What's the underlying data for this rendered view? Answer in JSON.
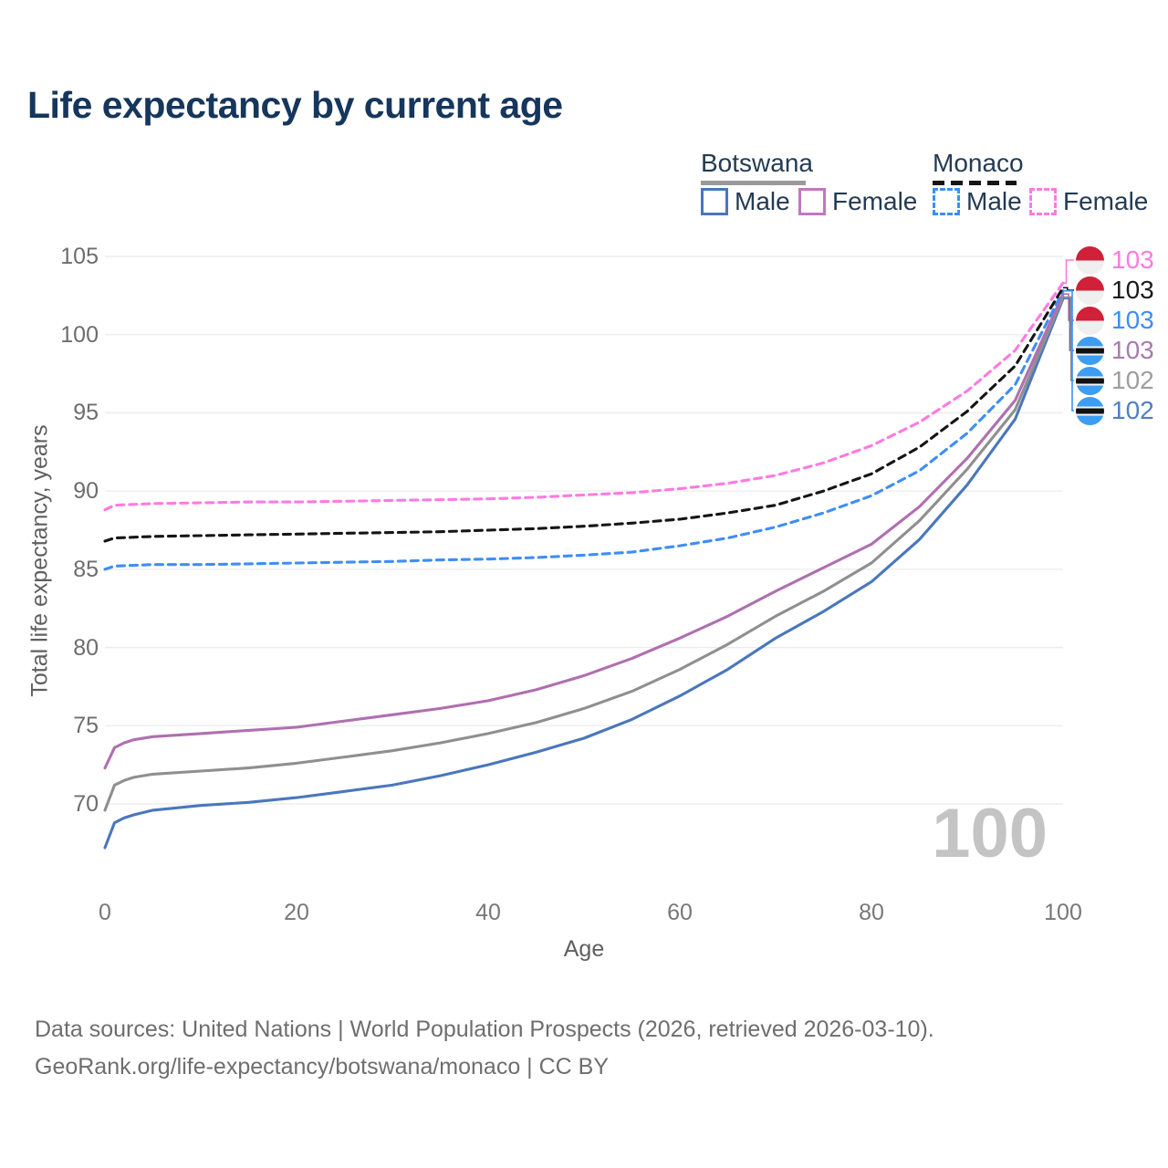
{
  "title": "Life expectancy by current age",
  "legend": {
    "groups": [
      {
        "name": "Botswana",
        "line_style": "solid",
        "underline_color": "#9a9a9a",
        "items": [
          {
            "label": "Male",
            "color": "#4a77bc"
          },
          {
            "label": "Female",
            "color": "#c078c0"
          }
        ]
      },
      {
        "name": "Monaco",
        "line_style": "dashed",
        "underline_color": "#151515",
        "items": [
          {
            "label": "Male",
            "color": "#3e8ef6"
          },
          {
            "label": "Female",
            "color": "#ff7ae1"
          }
        ]
      }
    ]
  },
  "watermark_age": "100",
  "value_labels": [
    {
      "value": "103",
      "color": "#ff7ae1",
      "flag": "monaco",
      "series": "Monaco Female"
    },
    {
      "value": "103",
      "color": "#1a1a1a",
      "flag": "monaco",
      "series": "Monaco"
    },
    {
      "value": "103",
      "color": "#3e8ef6",
      "flag": "monaco",
      "series": "Monaco Male"
    },
    {
      "value": "103",
      "color": "#a87bac",
      "flag": "botswana",
      "series": "Botswana Female"
    },
    {
      "value": "102",
      "color": "#9e9e9e",
      "flag": "botswana",
      "series": "Botswana"
    },
    {
      "value": "102",
      "color": "#4d7fc5",
      "flag": "botswana",
      "series": "Botswana Male"
    }
  ],
  "footer": {
    "line1": "Data sources: United Nations | World Population Prospects (2026, retrieved 2026-03-10).",
    "line2": "GeoRank.org/life-expectancy/botswana/monaco | CC BY"
  },
  "chart_data": {
    "type": "line",
    "title": "Life expectancy by current age",
    "xlabel": "Age",
    "ylabel": "Total life expectancy, years",
    "x_ticks": [
      0,
      20,
      40,
      60,
      80,
      100
    ],
    "y_ticks": [
      70,
      75,
      80,
      85,
      90,
      95,
      100,
      105
    ],
    "xlim": [
      0,
      100
    ],
    "ylim": [
      67,
      105.5
    ],
    "grid": "horizontal",
    "legend_position": "top-right",
    "gridline_color": "#ebebeb",
    "series": [
      {
        "name": "Botswana Male",
        "country": "Botswana",
        "sex": "male",
        "line_style": "solid",
        "color": "#4a77bc",
        "points": [
          [
            0,
            67.2
          ],
          [
            1,
            68.8
          ],
          [
            2,
            69.1
          ],
          [
            3,
            69.3
          ],
          [
            5,
            69.6
          ],
          [
            10,
            69.9
          ],
          [
            15,
            70.1
          ],
          [
            20,
            70.4
          ],
          [
            25,
            70.8
          ],
          [
            30,
            71.2
          ],
          [
            35,
            71.8
          ],
          [
            40,
            72.5
          ],
          [
            45,
            73.3
          ],
          [
            50,
            74.2
          ],
          [
            55,
            75.4
          ],
          [
            60,
            76.9
          ],
          [
            65,
            78.6
          ],
          [
            70,
            80.6
          ],
          [
            75,
            82.3
          ],
          [
            80,
            84.2
          ],
          [
            85,
            86.9
          ],
          [
            90,
            90.4
          ],
          [
            95,
            94.6
          ],
          [
            100,
            102.3
          ]
        ]
      },
      {
        "name": "Botswana",
        "country": "Botswana",
        "sex": "both",
        "line_style": "solid",
        "color": "#8f8f8f",
        "points": [
          [
            0,
            69.6
          ],
          [
            1,
            71.2
          ],
          [
            2,
            71.5
          ],
          [
            3,
            71.7
          ],
          [
            5,
            71.9
          ],
          [
            10,
            72.1
          ],
          [
            15,
            72.3
          ],
          [
            20,
            72.6
          ],
          [
            25,
            73.0
          ],
          [
            30,
            73.4
          ],
          [
            35,
            73.9
          ],
          [
            40,
            74.5
          ],
          [
            45,
            75.2
          ],
          [
            50,
            76.1
          ],
          [
            55,
            77.2
          ],
          [
            60,
            78.6
          ],
          [
            65,
            80.2
          ],
          [
            70,
            82.0
          ],
          [
            75,
            83.6
          ],
          [
            80,
            85.4
          ],
          [
            85,
            88.1
          ],
          [
            90,
            91.4
          ],
          [
            95,
            95.2
          ],
          [
            100,
            102.4
          ]
        ]
      },
      {
        "name": "Botswana Female",
        "country": "Botswana",
        "sex": "female",
        "line_style": "solid",
        "color": "#b06fb0",
        "points": [
          [
            0,
            72.3
          ],
          [
            1,
            73.6
          ],
          [
            2,
            73.9
          ],
          [
            3,
            74.1
          ],
          [
            5,
            74.3
          ],
          [
            10,
            74.5
          ],
          [
            15,
            74.7
          ],
          [
            20,
            74.9
          ],
          [
            25,
            75.3
          ],
          [
            30,
            75.7
          ],
          [
            35,
            76.1
          ],
          [
            40,
            76.6
          ],
          [
            45,
            77.3
          ],
          [
            50,
            78.2
          ],
          [
            55,
            79.3
          ],
          [
            60,
            80.6
          ],
          [
            65,
            82.0
          ],
          [
            70,
            83.6
          ],
          [
            75,
            85.1
          ],
          [
            80,
            86.6
          ],
          [
            85,
            89.0
          ],
          [
            90,
            92.1
          ],
          [
            95,
            95.8
          ],
          [
            100,
            102.6
          ]
        ]
      },
      {
        "name": "Monaco Male",
        "country": "Monaco",
        "sex": "male",
        "line_style": "dashed",
        "color": "#3e8ef6",
        "points": [
          [
            0,
            85.0
          ],
          [
            1,
            85.2
          ],
          [
            5,
            85.3
          ],
          [
            10,
            85.3
          ],
          [
            15,
            85.35
          ],
          [
            20,
            85.4
          ],
          [
            25,
            85.45
          ],
          [
            30,
            85.5
          ],
          [
            35,
            85.6
          ],
          [
            40,
            85.65
          ],
          [
            45,
            85.75
          ],
          [
            50,
            85.9
          ],
          [
            55,
            86.1
          ],
          [
            60,
            86.5
          ],
          [
            65,
            87.0
          ],
          [
            70,
            87.7
          ],
          [
            75,
            88.6
          ],
          [
            80,
            89.7
          ],
          [
            85,
            91.3
          ],
          [
            90,
            93.7
          ],
          [
            95,
            96.8
          ],
          [
            100,
            102.8
          ]
        ]
      },
      {
        "name": "Monaco",
        "country": "Monaco",
        "sex": "both",
        "line_style": "dashed",
        "color": "#151515",
        "points": [
          [
            0,
            86.8
          ],
          [
            1,
            87.0
          ],
          [
            5,
            87.1
          ],
          [
            10,
            87.15
          ],
          [
            15,
            87.2
          ],
          [
            20,
            87.25
          ],
          [
            25,
            87.3
          ],
          [
            30,
            87.35
          ],
          [
            35,
            87.4
          ],
          [
            40,
            87.5
          ],
          [
            45,
            87.6
          ],
          [
            50,
            87.75
          ],
          [
            55,
            87.95
          ],
          [
            60,
            88.2
          ],
          [
            65,
            88.6
          ],
          [
            70,
            89.1
          ],
          [
            75,
            90.0
          ],
          [
            80,
            91.1
          ],
          [
            85,
            92.8
          ],
          [
            90,
            95.1
          ],
          [
            95,
            98.0
          ],
          [
            100,
            103.0
          ]
        ]
      },
      {
        "name": "Monaco Female",
        "country": "Monaco",
        "sex": "female",
        "line_style": "dashed",
        "color": "#ff7ae1",
        "points": [
          [
            0,
            88.8
          ],
          [
            1,
            89.1
          ],
          [
            5,
            89.2
          ],
          [
            10,
            89.25
          ],
          [
            15,
            89.3
          ],
          [
            20,
            89.3
          ],
          [
            25,
            89.35
          ],
          [
            30,
            89.4
          ],
          [
            35,
            89.45
          ],
          [
            40,
            89.5
          ],
          [
            45,
            89.6
          ],
          [
            50,
            89.75
          ],
          [
            55,
            89.9
          ],
          [
            60,
            90.15
          ],
          [
            65,
            90.5
          ],
          [
            70,
            91.0
          ],
          [
            75,
            91.8
          ],
          [
            80,
            92.9
          ],
          [
            85,
            94.4
          ],
          [
            90,
            96.4
          ],
          [
            95,
            99.0
          ],
          [
            100,
            103.3
          ]
        ]
      }
    ]
  }
}
